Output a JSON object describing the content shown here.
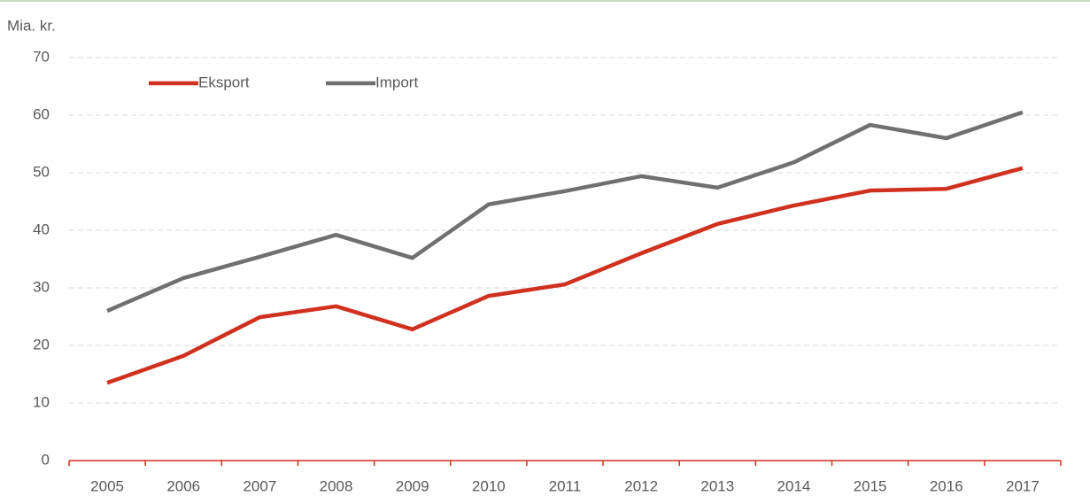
{
  "chart_data": {
    "type": "line",
    "y_label": "Mia. kr.",
    "categories": [
      "2005",
      "2006",
      "2007",
      "2008",
      "2009",
      "2010",
      "2011",
      "2012",
      "2013",
      "2014",
      "2015",
      "2016",
      "2017"
    ],
    "series": [
      {
        "name": "Eksport",
        "color": "#d0311f",
        "values": [
          13.5,
          18.2,
          24.9,
          26.8,
          22.8,
          28.6,
          30.6,
          36,
          41.1,
          44.3,
          46.9,
          47.2,
          50.8
        ]
      },
      {
        "name": "Import",
        "color": "#707070",
        "values": [
          26,
          31.7,
          35.4,
          39.2,
          35.2,
          44.5,
          46.8,
          49.4,
          47.4,
          51.8,
          58.3,
          56,
          60.5
        ]
      }
    ],
    "ylim": [
      0,
      70
    ],
    "yticks": [
      0,
      10,
      20,
      30,
      40,
      50,
      60,
      70
    ],
    "grid": true,
    "axis_color": "#d0311f"
  }
}
